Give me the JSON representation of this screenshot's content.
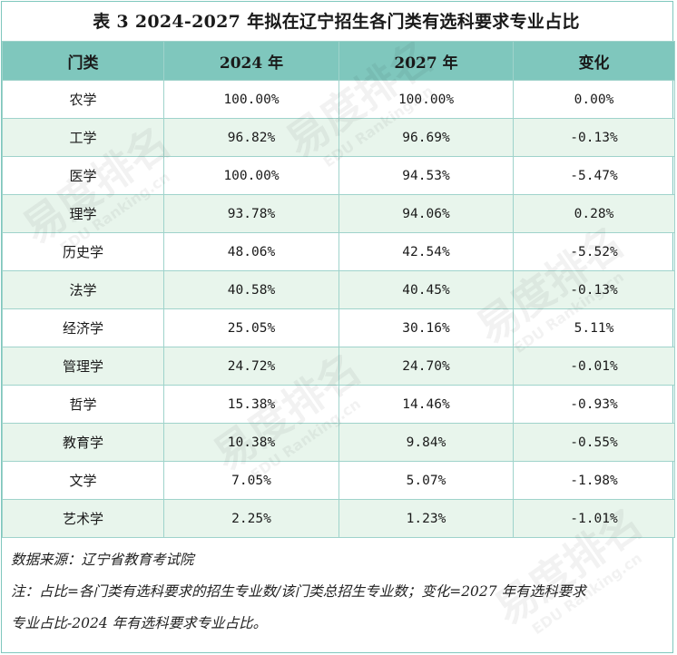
{
  "title": "表 3  2024-2027 年拟在辽宁招生各门类有选科要求专业占比",
  "headers": [
    "门类",
    "2024 年",
    "2027 年",
    "变化"
  ],
  "rows": [
    {
      "category": "农学",
      "y2024": "100.00%",
      "y2027": "100.00%",
      "change": "0.00%"
    },
    {
      "category": "工学",
      "y2024": "96.82%",
      "y2027": "96.69%",
      "change": "-0.13%"
    },
    {
      "category": "医学",
      "y2024": "100.00%",
      "y2027": "94.53%",
      "change": "-5.47%"
    },
    {
      "category": "理学",
      "y2024": "93.78%",
      "y2027": "94.06%",
      "change": "0.28%"
    },
    {
      "category": "历史学",
      "y2024": "48.06%",
      "y2027": "42.54%",
      "change": "-5.52%"
    },
    {
      "category": "法学",
      "y2024": "40.58%",
      "y2027": "40.45%",
      "change": "-0.13%"
    },
    {
      "category": "经济学",
      "y2024": "25.05%",
      "y2027": "30.16%",
      "change": "5.11%"
    },
    {
      "category": "管理学",
      "y2024": "24.72%",
      "y2027": "24.70%",
      "change": "-0.01%"
    },
    {
      "category": "哲学",
      "y2024": "15.38%",
      "y2027": "14.46%",
      "change": "-0.93%"
    },
    {
      "category": "教育学",
      "y2024": "10.38%",
      "y2027": "9.84%",
      "change": "-0.55%"
    },
    {
      "category": "文学",
      "y2024": "7.05%",
      "y2027": "5.07%",
      "change": "-1.98%"
    },
    {
      "category": "艺术学",
      "y2024": "2.25%",
      "y2027": "1.23%",
      "change": "-1.01%"
    }
  ],
  "source": "数据来源：辽宁省教育考试院",
  "note_line1": "注：占比=各门类有选科要求的招生专业数/该门类总招生专业数；变化=2027 年有选科要求",
  "note_line2": "专业占比-2024 年有选科要求专业占比。",
  "watermark": {
    "cn": "易度排名",
    "en": "EDU Ranking.cn"
  },
  "colors": {
    "header": "#7fc7bd",
    "stripe": "#e8f5ec",
    "border": "#9fd3cb"
  }
}
